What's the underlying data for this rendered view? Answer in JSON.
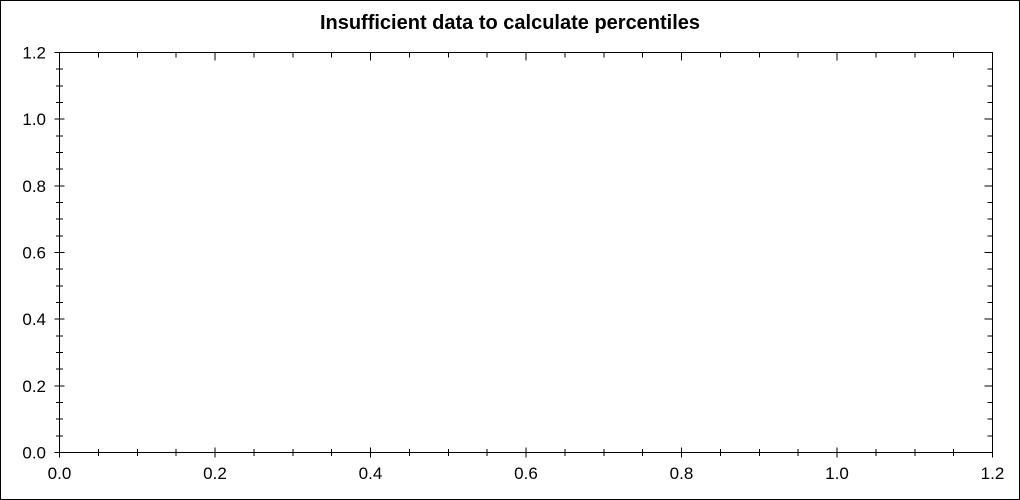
{
  "window": {
    "background_color": "#ffffff",
    "border_color": "#000000"
  },
  "chart_data": {
    "type": "scatter",
    "title": "Insufficient data to calculate percentiles",
    "title_color": "#000000",
    "series": [],
    "xlabel": "",
    "ylabel": "",
    "xlim": [
      0.0,
      1.2
    ],
    "ylim": [
      0.0,
      1.2
    ],
    "x_tick_labels": [
      "0.0",
      "0.2",
      "0.4",
      "0.6",
      "0.8",
      "1.0",
      "1.2"
    ],
    "y_tick_labels": [
      "0.0",
      "0.2",
      "0.4",
      "0.6",
      "0.8",
      "1.0",
      "1.2"
    ],
    "x_major_interval": 0.2,
    "y_major_interval": 0.2,
    "x_minor_interval": 0.05,
    "y_minor_interval": 0.05,
    "grid": false,
    "framed": true,
    "tick_style": "cross on bottom/left axes, inward on top/right frame",
    "axis_color": "#000000",
    "tick_label_color": "#000000",
    "legend": null
  }
}
